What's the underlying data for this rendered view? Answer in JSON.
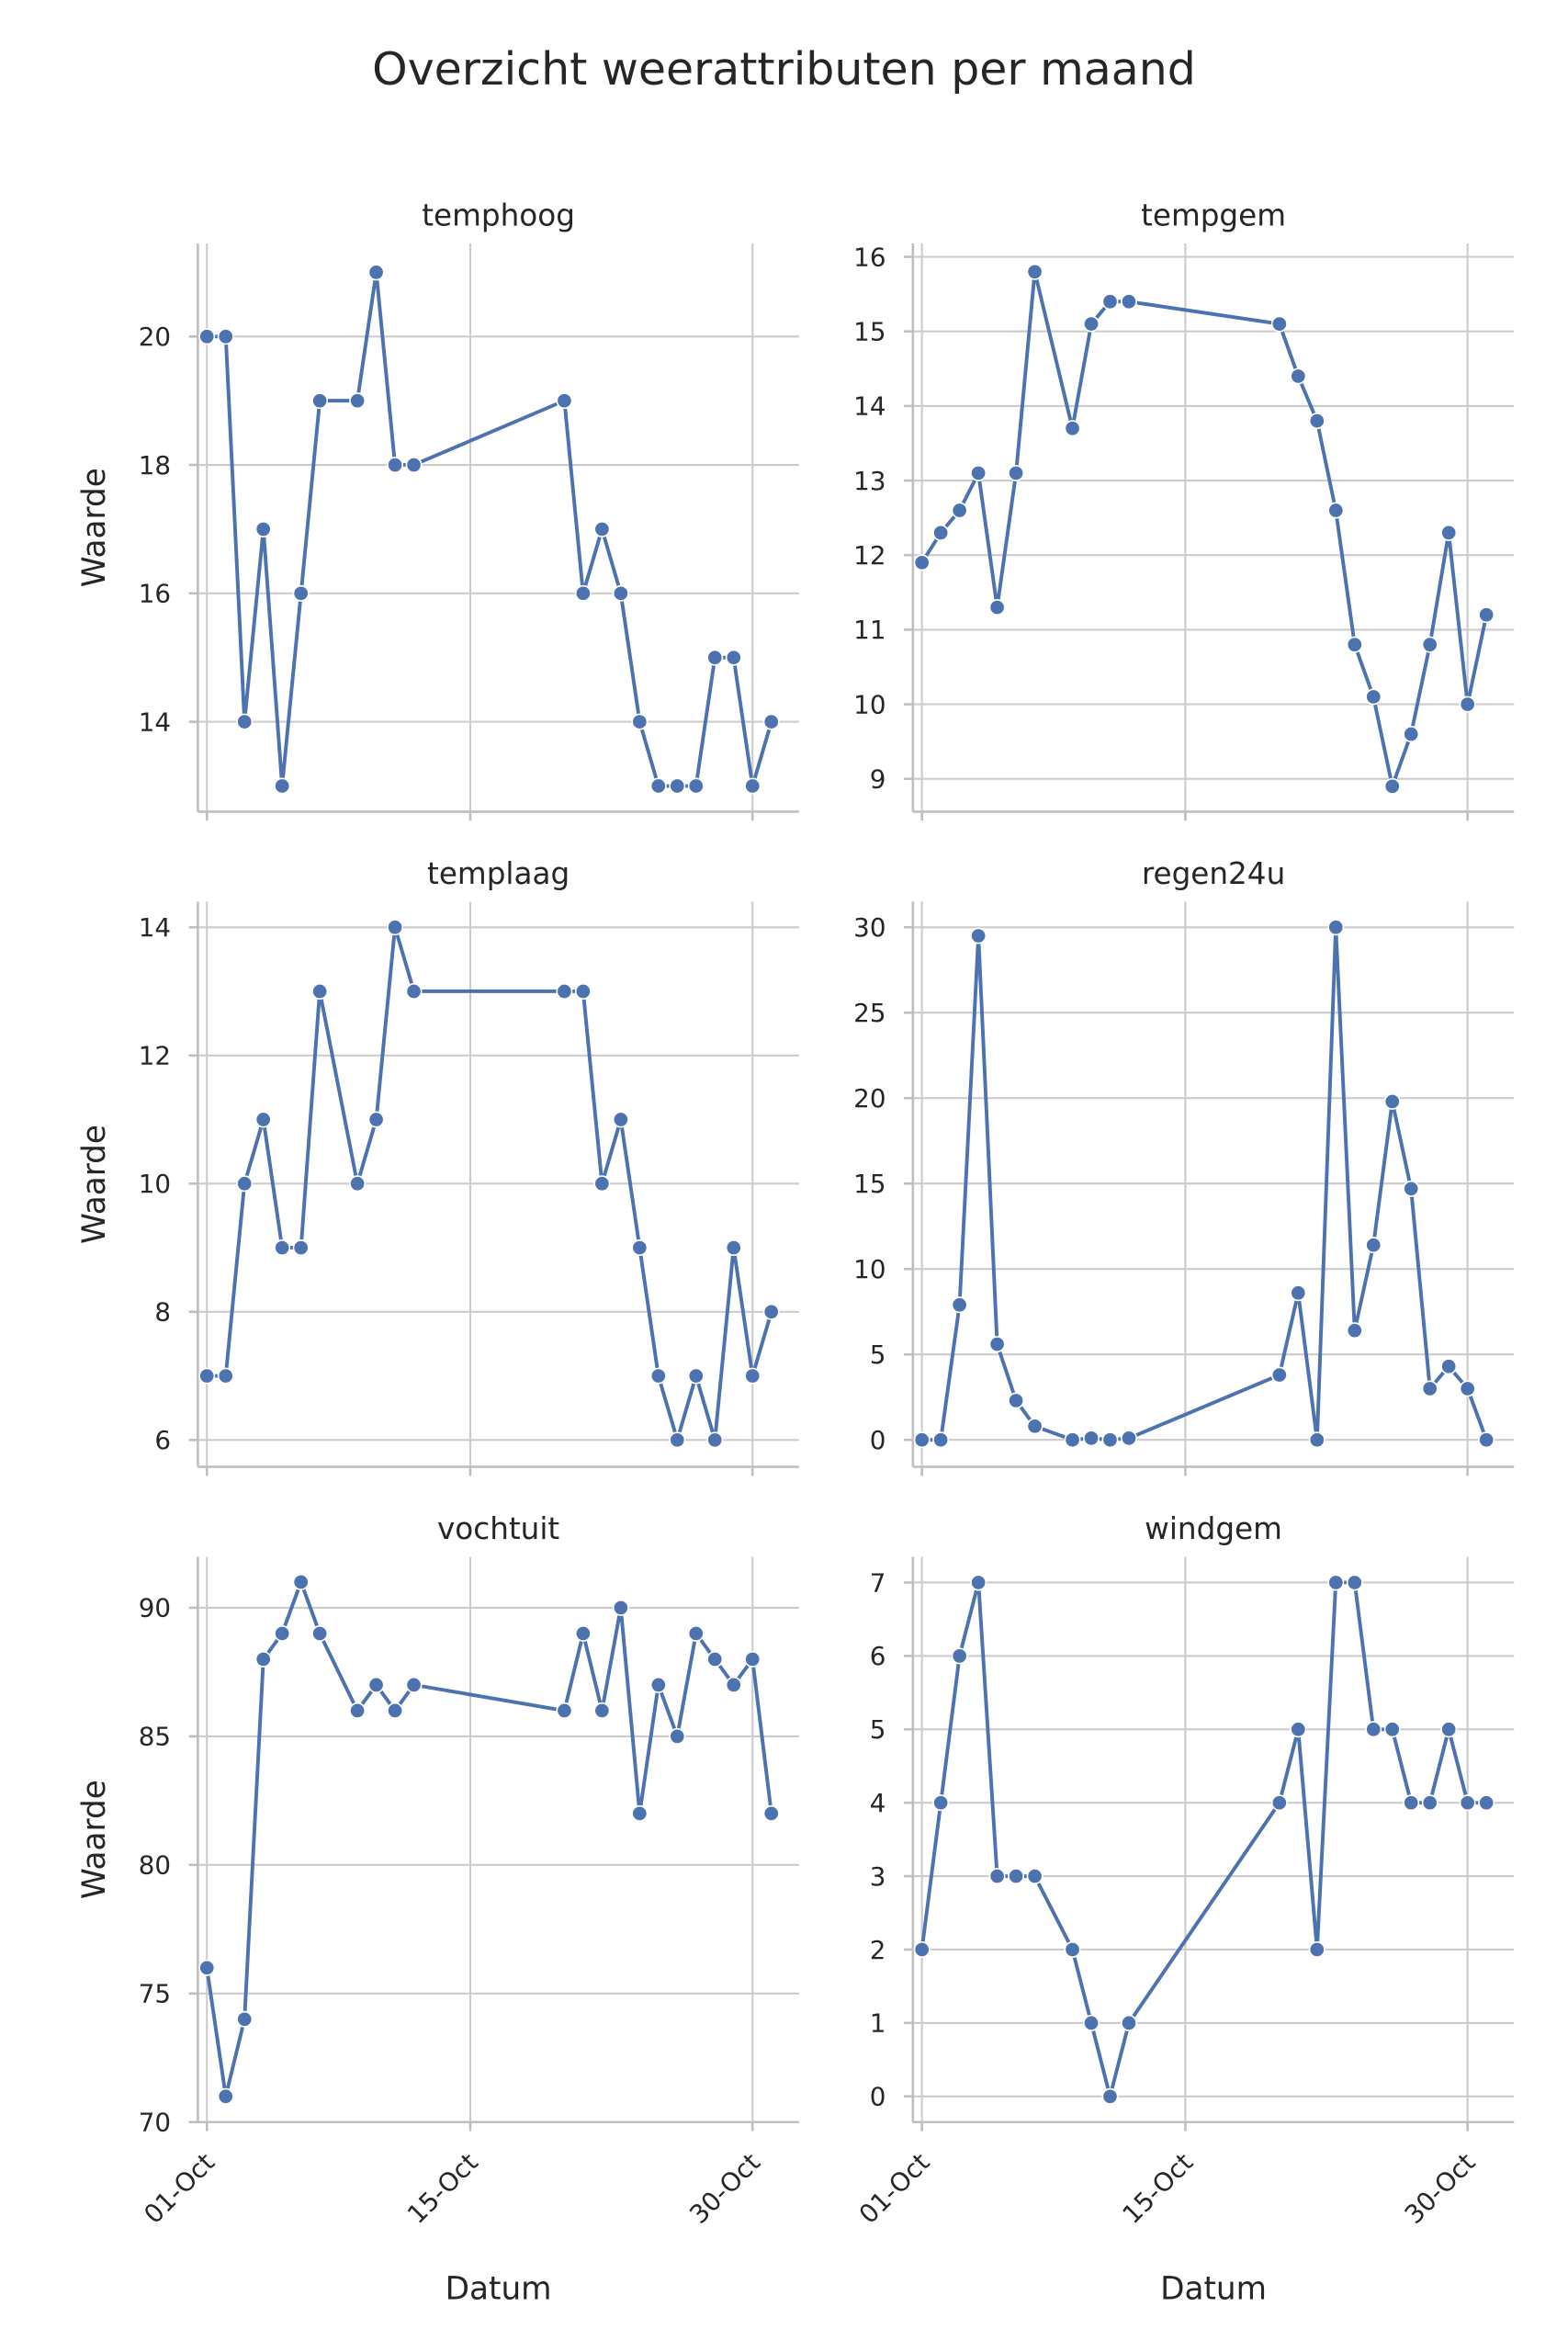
{
  "chart_data": {
    "type": "line",
    "title": "Overzicht weerattributen per maand",
    "xlabel": "Datum",
    "ylabel": "Waarde",
    "color": "#4c72b0",
    "grid": true,
    "x": [
      1,
      2,
      3,
      4,
      5,
      6,
      7,
      9,
      10,
      11,
      12,
      20,
      21,
      22,
      23,
      24,
      25,
      26,
      27,
      28,
      29,
      30,
      31
    ],
    "x_unit": "day of October",
    "xlim": [
      0.52,
      32.47
    ],
    "xticks": [
      1,
      15,
      30
    ],
    "xtick_labels": [
      "01-Oct",
      "15-Oct",
      "30-Oct"
    ],
    "panels": [
      {
        "name": "temphoog",
        "ylim": [
          12.6,
          21.45
        ],
        "yticks": [
          14,
          16,
          18,
          20
        ],
        "values": [
          20,
          20,
          14,
          17,
          13,
          16,
          19,
          19,
          21,
          18,
          18,
          19,
          16,
          17,
          16,
          14,
          13,
          13,
          13,
          15,
          15,
          13,
          14
        ]
      },
      {
        "name": "tempgem",
        "ylim": [
          8.56,
          16.18
        ],
        "yticks": [
          9,
          10,
          11,
          12,
          13,
          14,
          15,
          16
        ],
        "values": [
          11.9,
          12.3,
          12.6,
          13.1,
          11.3,
          13.1,
          15.8,
          13.7,
          15.1,
          15.4,
          15.4,
          15.1,
          14.4,
          13.8,
          12.6,
          10.8,
          10.1,
          8.9,
          9.6,
          10.8,
          12.3,
          10.0,
          11.2
        ]
      },
      {
        "name": "templaag",
        "ylim": [
          5.58,
          14.4
        ],
        "yticks": [
          6,
          8,
          10,
          12,
          14
        ],
        "values": [
          7,
          7,
          10,
          11,
          9,
          9,
          13,
          10,
          11,
          14,
          13,
          13,
          13,
          10,
          11,
          9,
          7,
          6,
          7,
          6,
          9,
          7,
          8
        ]
      },
      {
        "name": "regen24u",
        "ylim": [
          -1.58,
          31.5
        ],
        "yticks": [
          0,
          5,
          10,
          15,
          20,
          25,
          30
        ],
        "values": [
          0,
          0,
          7.9,
          29.5,
          5.6,
          2.3,
          0.8,
          0,
          0.1,
          0,
          0.1,
          3.8,
          8.6,
          0,
          30,
          6.4,
          11.4,
          19.8,
          14.7,
          3,
          4.3,
          3,
          0
        ]
      },
      {
        "name": "vochtuit",
        "ylim": [
          70,
          91.98
        ],
        "yticks": [
          70,
          75,
          80,
          85,
          90
        ],
        "values": [
          76,
          71,
          74,
          88,
          89,
          91,
          89,
          86,
          87,
          86,
          87,
          86,
          89,
          86,
          90,
          82,
          87,
          85,
          89,
          88,
          87,
          88,
          82
        ]
      },
      {
        "name": "windgem",
        "ylim": [
          -0.35,
          7.35
        ],
        "yticks": [
          0,
          1,
          2,
          3,
          4,
          5,
          6,
          7
        ],
        "values": [
          2,
          4,
          6,
          7,
          3,
          3,
          3,
          2,
          1,
          0,
          1,
          4,
          5,
          2,
          7,
          7,
          5,
          5,
          4,
          4,
          5,
          4,
          4
        ]
      }
    ]
  }
}
